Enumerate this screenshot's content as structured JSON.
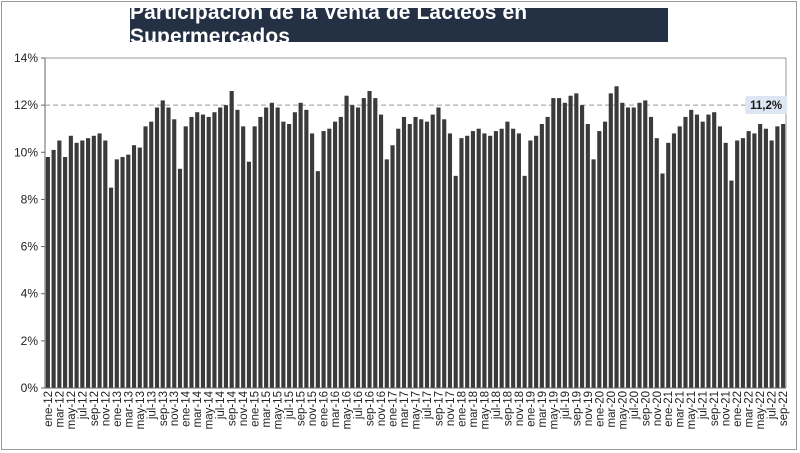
{
  "chart_data": {
    "type": "bar",
    "title": "Participación de la Venta de Lácteos en Supermercados",
    "xlabel": "",
    "ylabel": "",
    "ylim": [
      0,
      14
    ],
    "yticks": [
      "0%",
      "2%",
      "4%",
      "6%",
      "8%",
      "10%",
      "12%",
      "14%"
    ],
    "reference_line": 12,
    "grid": false,
    "legend": "none",
    "bar_color": "#3a3a3a",
    "accent_color": "#243044",
    "callout": {
      "label": "11,2%",
      "month": "sep-22",
      "value": 11.2
    },
    "x_tick_labels": [
      "ene-12",
      "mar-12",
      "may-12",
      "jul-12",
      "sep-12",
      "nov-12",
      "ene-13",
      "mar-13",
      "may-13",
      "jul-13",
      "sep-13",
      "nov-13",
      "ene-14",
      "mar-14",
      "may-14",
      "jul-14",
      "sep-14",
      "nov-14",
      "ene-15",
      "mar-15",
      "may-15",
      "jul-15",
      "sep-15",
      "nov-15",
      "ene-16",
      "mar-16",
      "may-16",
      "jul-16",
      "sep-16",
      "nov-16",
      "ene-17",
      "mar-17",
      "may-17",
      "jul-17",
      "sep-17",
      "nov-17",
      "ene-18",
      "mar-18",
      "may-18",
      "jul-18",
      "sep-18",
      "nov-18",
      "ene-19",
      "mar-19",
      "may-19",
      "jul-19",
      "sep-19",
      "nov-19",
      "ene-20",
      "mar-20",
      "may-20",
      "jul-20",
      "sep-20",
      "nov-20",
      "ene-21",
      "mar-21",
      "may-21",
      "jul-21",
      "sep-21",
      "nov-21",
      "ene-22",
      "mar-22",
      "may-22",
      "jul-22",
      "sep-22"
    ],
    "categories": [
      "ene-12",
      "feb-12",
      "mar-12",
      "abr-12",
      "may-12",
      "jun-12",
      "jul-12",
      "ago-12",
      "sep-12",
      "oct-12",
      "nov-12",
      "dic-12",
      "ene-13",
      "feb-13",
      "mar-13",
      "abr-13",
      "may-13",
      "jun-13",
      "jul-13",
      "ago-13",
      "sep-13",
      "oct-13",
      "nov-13",
      "dic-13",
      "ene-14",
      "feb-14",
      "mar-14",
      "abr-14",
      "may-14",
      "jun-14",
      "jul-14",
      "ago-14",
      "sep-14",
      "oct-14",
      "nov-14",
      "dic-14",
      "ene-15",
      "feb-15",
      "mar-15",
      "abr-15",
      "may-15",
      "jun-15",
      "jul-15",
      "ago-15",
      "sep-15",
      "oct-15",
      "nov-15",
      "dic-15",
      "ene-16",
      "feb-16",
      "mar-16",
      "abr-16",
      "may-16",
      "jun-16",
      "jul-16",
      "ago-16",
      "sep-16",
      "oct-16",
      "nov-16",
      "dic-16",
      "ene-17",
      "feb-17",
      "mar-17",
      "abr-17",
      "may-17",
      "jun-17",
      "jul-17",
      "ago-17",
      "sep-17",
      "oct-17",
      "nov-17",
      "dic-17",
      "ene-18",
      "feb-18",
      "mar-18",
      "abr-18",
      "may-18",
      "jun-18",
      "jul-18",
      "ago-18",
      "sep-18",
      "oct-18",
      "nov-18",
      "dic-18",
      "ene-19",
      "feb-19",
      "mar-19",
      "abr-19",
      "may-19",
      "jun-19",
      "jul-19",
      "ago-19",
      "sep-19",
      "oct-19",
      "nov-19",
      "dic-19",
      "ene-20",
      "feb-20",
      "mar-20",
      "abr-20",
      "may-20",
      "jun-20",
      "jul-20",
      "ago-20",
      "sep-20",
      "oct-20",
      "nov-20",
      "dic-20",
      "ene-21",
      "feb-21",
      "mar-21",
      "abr-21",
      "may-21",
      "jun-21",
      "jul-21",
      "ago-21",
      "sep-21",
      "oct-21",
      "nov-21",
      "dic-21",
      "ene-22",
      "feb-22",
      "mar-22",
      "abr-22",
      "may-22",
      "jun-22",
      "jul-22",
      "ago-22",
      "sep-22"
    ],
    "values": [
      9.8,
      10.1,
      10.5,
      9.8,
      10.7,
      10.4,
      10.5,
      10.6,
      10.7,
      10.8,
      10.5,
      8.5,
      9.7,
      9.8,
      9.9,
      10.3,
      10.2,
      11.1,
      11.3,
      11.9,
      12.2,
      11.9,
      11.4,
      9.3,
      11.1,
      11.5,
      11.7,
      11.6,
      11.5,
      11.7,
      11.9,
      12.0,
      12.6,
      11.8,
      11.1,
      9.6,
      11.1,
      11.5,
      11.9,
      12.1,
      11.9,
      11.3,
      11.2,
      11.7,
      12.1,
      11.8,
      10.8,
      9.2,
      10.9,
      11.0,
      11.3,
      11.5,
      12.4,
      12.0,
      11.9,
      12.3,
      12.6,
      12.3,
      11.6,
      9.7,
      10.3,
      11.0,
      11.5,
      11.2,
      11.5,
      11.4,
      11.3,
      11.6,
      11.9,
      11.4,
      10.8,
      9.0,
      10.6,
      10.7,
      10.9,
      11.0,
      10.8,
      10.7,
      10.9,
      11.0,
      11.3,
      11.0,
      10.8,
      9.0,
      10.5,
      10.7,
      11.2,
      11.5,
      12.3,
      12.3,
      12.1,
      12.4,
      12.5,
      12.0,
      11.2,
      9.7,
      10.9,
      11.3,
      12.5,
      12.8,
      12.1,
      11.9,
      11.9,
      12.1,
      12.2,
      11.5,
      10.6,
      9.1,
      10.4,
      10.8,
      11.1,
      11.5,
      11.8,
      11.6,
      11.3,
      11.6,
      11.7,
      11.1,
      10.4,
      8.8,
      10.5,
      10.6,
      10.9,
      10.8,
      11.2,
      11.0,
      10.5,
      11.1,
      11.2
    ]
  }
}
